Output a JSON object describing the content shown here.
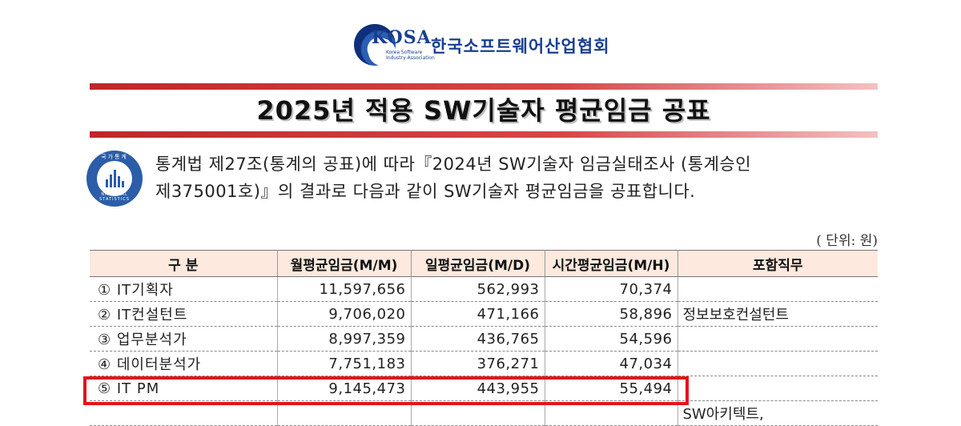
{
  "header": {
    "logo_text": "KOSA",
    "logo_subtitle_line1": "Korea Software",
    "logo_subtitle_line2": "Industry Association",
    "org_name": "한국소프트웨어산업협회"
  },
  "title": "2025년 적용 SW기술자 평균임금 공표",
  "emblem": {
    "label": "국가통계",
    "ring_text": "NATIONAL STATISTICS"
  },
  "intro": {
    "line1": "통계법 제27조(통계의 공표)에 따라『2024년 SW기술자 임금실태조사 (통계승인",
    "line2": "제375001호)』의 결과로 다음과 같이 SW기술자 평균임금을 공표합니다."
  },
  "unit": "( 단위: 원)",
  "table": {
    "headers": [
      "구  분",
      "월평균임금(M/M)",
      "일평균임금(M/D)",
      "시간평균임금(M/H)",
      "포함직무"
    ],
    "rows": [
      {
        "category": "① IT기획자",
        "monthly": "11,597,656",
        "daily": "562,993",
        "hourly": "70,374",
        "included": ""
      },
      {
        "category": "② IT컨설턴트",
        "monthly": "9,706,020",
        "daily": "471,166",
        "hourly": "58,896",
        "included": "정보보호컨설턴트"
      },
      {
        "category": "③ 업무분석가",
        "monthly": "8,997,359",
        "daily": "436,765",
        "hourly": "54,596",
        "included": ""
      },
      {
        "category": "④ 데이터분석가",
        "monthly": "7,751,183",
        "daily": "376,271",
        "hourly": "47,034",
        "included": ""
      },
      {
        "category": "⑤ IT PM",
        "monthly": "9,145,473",
        "daily": "443,955",
        "hourly": "55,494",
        "included": ""
      },
      {
        "category": "",
        "monthly": "",
        "daily": "",
        "hourly": "",
        "included": "SW아키텍트,"
      }
    ]
  },
  "colors": {
    "brand_blue": "#1a3f8f",
    "title_bar_red": "#c0262c",
    "header_fill": "#fde9dd",
    "highlight_red": "#e3141b"
  }
}
